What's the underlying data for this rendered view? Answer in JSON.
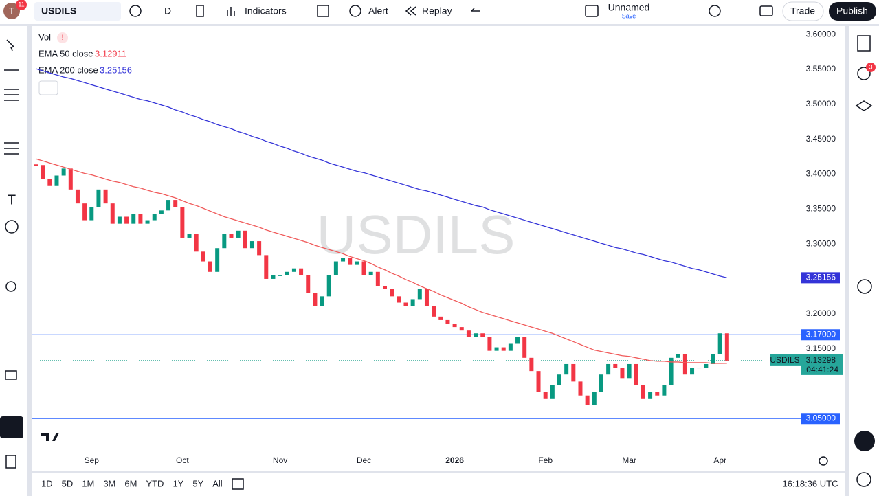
{
  "toolbar": {
    "avatar": "T",
    "badge": "11",
    "symbol": "USDILS",
    "interval": "D",
    "indicators": "Indicators",
    "alert": "Alert",
    "replay": "Replay",
    "layout_name": "Unnamed",
    "save": "Save",
    "trade": "Trade",
    "publish": "Publish"
  },
  "sidebar": {
    "badge": "3"
  },
  "chart_data": {
    "type": "candlestick",
    "watermark": "USDILS",
    "volume_label": "Vol",
    "volume_warning": "!",
    "categories": [
      null,
      null,
      null,
      null,
      null,
      null,
      null,
      null,
      "Sep",
      null,
      null,
      null,
      null,
      null,
      null,
      null,
      null,
      null,
      null,
      null,
      null,
      "Oct",
      null,
      null,
      null,
      null,
      null,
      null,
      null,
      null,
      null,
      null,
      null,
      null,
      null,
      "Nov",
      null,
      null,
      null,
      null,
      null,
      null,
      null,
      null,
      null,
      null,
      null,
      "Dec",
      null,
      null,
      null,
      null,
      null,
      null,
      null,
      null,
      null,
      null,
      null,
      null,
      "2026",
      null,
      null,
      null,
      null,
      null,
      null,
      null,
      null,
      null,
      null,
      null,
      null,
      "Feb",
      null,
      null,
      null,
      null,
      null,
      null,
      null,
      null,
      null,
      null,
      null,
      "Mar",
      null,
      null,
      null,
      null,
      null,
      null,
      null,
      null,
      null,
      null,
      null,
      null,
      "Apr",
      null
    ],
    "values": [
      3.413,
      3.393,
      3.383,
      3.398,
      3.408,
      3.378,
      3.358,
      3.334,
      3.353,
      3.378,
      3.358,
      3.329,
      3.339,
      3.329,
      3.343,
      3.329,
      3.334,
      3.343,
      3.348,
      3.363,
      3.353,
      3.309,
      3.314,
      3.289,
      3.275,
      3.26,
      3.294,
      3.314,
      3.309,
      3.319,
      3.294,
      3.304,
      3.284,
      3.25,
      3.255,
      3.255,
      3.26,
      3.265,
      3.255,
      3.23,
      3.211,
      3.225,
      3.255,
      3.275,
      3.28,
      3.27,
      3.275,
      3.255,
      3.26,
      3.24,
      3.236,
      3.225,
      3.216,
      3.211,
      3.221,
      3.236,
      3.211,
      3.196,
      3.191,
      3.186,
      3.181,
      3.176,
      3.167,
      3.172,
      3.167,
      3.147,
      3.152,
      3.147,
      3.157,
      3.167,
      3.137,
      3.118,
      3.088,
      3.078,
      3.098,
      3.113,
      3.128,
      3.103,
      3.083,
      3.069,
      3.088,
      3.113,
      3.128,
      3.123,
      3.108,
      3.128,
      3.098,
      3.078,
      3.088,
      3.083,
      3.098,
      3.137,
      3.142,
      3.113,
      3.123,
      3.123,
      3.128,
      3.142,
      3.172,
      3.133
    ],
    "up_color": "#089981",
    "down_color": "#f23645",
    "series": [
      {
        "name": "EMA 50 close",
        "color": "#f05a5a",
        "value_label": "3.12911",
        "values": [
          3.422,
          3.419,
          3.416,
          3.413,
          3.41,
          3.407,
          3.404,
          3.401,
          3.399,
          3.396,
          3.393,
          3.39,
          3.388,
          3.385,
          3.382,
          3.38,
          3.377,
          3.374,
          3.372,
          3.369,
          3.366,
          3.362,
          3.358,
          3.355,
          3.351,
          3.347,
          3.343,
          3.339,
          3.336,
          3.333,
          3.33,
          3.327,
          3.324,
          3.32,
          3.317,
          3.314,
          3.311,
          3.308,
          3.305,
          3.302,
          3.298,
          3.295,
          3.292,
          3.289,
          3.286,
          3.282,
          3.279,
          3.276,
          3.272,
          3.267,
          3.263,
          3.258,
          3.254,
          3.249,
          3.245,
          3.24,
          3.236,
          3.232,
          3.227,
          3.223,
          3.219,
          3.215,
          3.21,
          3.206,
          3.202,
          3.199,
          3.196,
          3.193,
          3.19,
          3.187,
          3.184,
          3.181,
          3.178,
          3.175,
          3.172,
          3.168,
          3.164,
          3.16,
          3.156,
          3.152,
          3.148,
          3.146,
          3.144,
          3.142,
          3.14,
          3.139,
          3.137,
          3.135,
          3.133,
          3.132,
          3.132,
          3.131,
          3.131,
          3.13,
          3.13,
          3.13,
          3.13,
          3.129,
          3.129,
          3.12911
        ]
      },
      {
        "name": "EMA 200 close",
        "color": "#3434d8",
        "value_label": "3.25156",
        "values": [
          3.551,
          3.548,
          3.545,
          3.542,
          3.539,
          3.537,
          3.534,
          3.531,
          3.528,
          3.525,
          3.522,
          3.519,
          3.516,
          3.513,
          3.51,
          3.507,
          3.505,
          3.502,
          3.499,
          3.496,
          3.492,
          3.489,
          3.485,
          3.482,
          3.478,
          3.475,
          3.471,
          3.468,
          3.465,
          3.461,
          3.458,
          3.454,
          3.451,
          3.447,
          3.444,
          3.44,
          3.437,
          3.433,
          3.43,
          3.426,
          3.423,
          3.42,
          3.416,
          3.413,
          3.41,
          3.407,
          3.404,
          3.402,
          3.399,
          3.396,
          3.393,
          3.39,
          3.387,
          3.384,
          3.381,
          3.378,
          3.376,
          3.373,
          3.37,
          3.367,
          3.364,
          3.361,
          3.358,
          3.355,
          3.353,
          3.349,
          3.346,
          3.343,
          3.34,
          3.337,
          3.334,
          3.331,
          3.328,
          3.325,
          3.322,
          3.319,
          3.316,
          3.313,
          3.31,
          3.307,
          3.304,
          3.301,
          3.298,
          3.295,
          3.293,
          3.29,
          3.287,
          3.285,
          3.282,
          3.279,
          3.276,
          3.274,
          3.271,
          3.268,
          3.265,
          3.263,
          3.26,
          3.257,
          3.254,
          3.25156
        ]
      }
    ],
    "hlines": [
      {
        "value": 3.17,
        "label": "3.17000"
      },
      {
        "value": 3.05,
        "label": "3.05000"
      }
    ],
    "last_price": 3.13298,
    "last_symbol": "USDILS",
    "countdown": "04:41:24",
    "ylim": [
      3.005,
      3.61
    ],
    "yticks": [
      {
        "value": 3.15,
        "label": "3.15000"
      },
      {
        "value": 3.2,
        "label": "3.20000"
      },
      {
        "value": 3.3,
        "label": "3.30000"
      },
      {
        "value": 3.35,
        "label": "3.35000"
      },
      {
        "value": 3.4,
        "label": "3.40000"
      },
      {
        "value": 3.45,
        "label": "3.45000"
      },
      {
        "value": 3.5,
        "label": "3.50000"
      },
      {
        "value": 3.55,
        "label": "3.55000"
      },
      {
        "value": 3.6,
        "label": "3.60000"
      }
    ]
  },
  "bottom": {
    "ranges": [
      "1D",
      "5D",
      "1M",
      "3M",
      "6M",
      "YTD",
      "1Y",
      "5Y",
      "All"
    ],
    "clock": "16:18:36 UTC"
  }
}
